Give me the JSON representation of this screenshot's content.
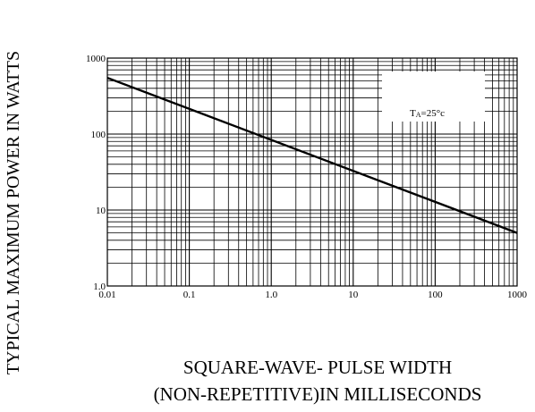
{
  "chart_data": {
    "type": "line",
    "title": "",
    "ylabel": "TYPICAL MAXIMUM POWER IN WATTS",
    "xlabel_lines": [
      "SQUARE-WAVE- PULSE WIDTH",
      "(NON-REPETITIVE)IN MILLISECONDS"
    ],
    "x_scale": "log",
    "y_scale": "log",
    "xlim": [
      0.01,
      1000
    ],
    "ylim": [
      1.0,
      1000
    ],
    "x_ticks": [
      0.01,
      0.1,
      1.0,
      10,
      100,
      1000
    ],
    "x_tick_labels": [
      "0.01",
      "0.1",
      "1.0",
      "10",
      "100",
      "1000"
    ],
    "y_ticks": [
      1.0,
      10,
      100,
      1000
    ],
    "y_tick_labels": [
      "1.0",
      "10",
      "100",
      "1000"
    ],
    "grid": true,
    "annotation": {
      "text_main": "T",
      "text_sub": "A",
      "text_rest": "=25°c"
    },
    "series": [
      {
        "x": [
          0.01,
          1000
        ],
        "y": [
          550,
          5
        ]
      }
    ]
  }
}
